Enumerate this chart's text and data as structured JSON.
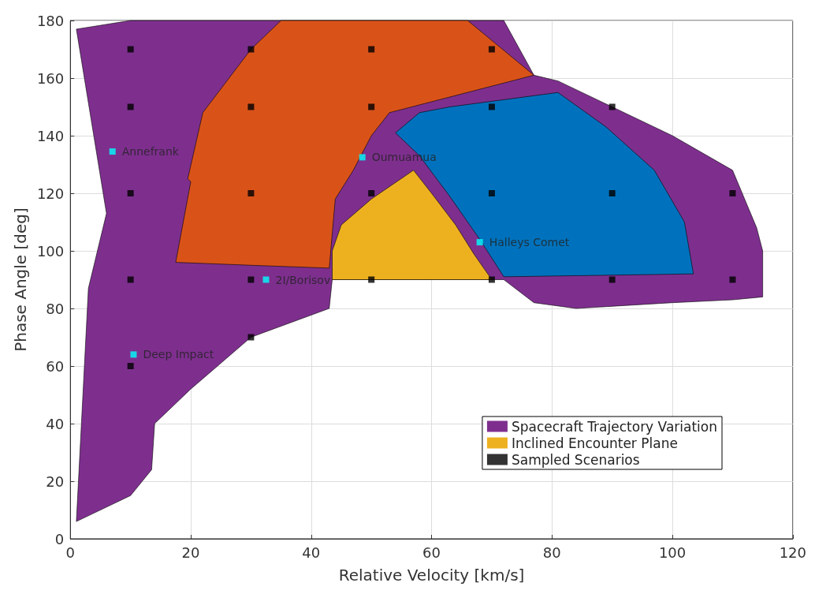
{
  "chart_data": {
    "type": "area",
    "xlabel": "Relative Velocity [km/s]",
    "ylabel": "Phase Angle [deg]",
    "xlim": [
      0,
      120
    ],
    "xticks": [
      0,
      20,
      40,
      60,
      80,
      100,
      120
    ],
    "ylim": [
      0,
      180
    ],
    "yticks": [
      0,
      20,
      40,
      60,
      80,
      100,
      120,
      140,
      160,
      180
    ],
    "grid": true,
    "legend": "bottom right",
    "series": [
      {
        "name": "Spacecraft Trajectory Variation",
        "color": "#7e2f8e",
        "x": [
          1,
          10,
          72,
          77,
          81,
          100,
          110,
          114,
          115,
          115,
          110,
          100,
          84,
          77,
          72,
          43.5,
          43,
          30,
          20,
          14,
          13.5,
          10,
          1,
          3,
          4.5,
          6
        ],
        "values": [
          177,
          180,
          180,
          161,
          159,
          140,
          128,
          108,
          100,
          84,
          83,
          82,
          80,
          82,
          90,
          90,
          80,
          70,
          52,
          40,
          24,
          15,
          6,
          87,
          100,
          113
        ]
      },
      {
        "color": "#d95319",
        "x": [
          17.5,
          20,
          19.5,
          22,
          30,
          35,
          66,
          77,
          53,
          50,
          47,
          44,
          43,
          30
        ],
        "values": [
          96,
          124,
          125,
          148,
          170,
          180,
          180,
          161,
          148,
          140,
          128,
          118,
          94,
          95
        ]
      },
      {
        "name": "Inclined Encounter Plane",
        "color": "#edb120",
        "x": [
          43.5,
          43.5,
          45,
          50,
          57,
          60,
          64,
          67,
          70
        ],
        "values": [
          90,
          100,
          109,
          118,
          128,
          120,
          109,
          99,
          90
        ]
      },
      {
        "color": "#0072bd",
        "x": [
          54,
          58,
          63,
          72,
          81,
          89,
          97,
          102,
          103.5,
          72,
          68,
          63,
          58
        ],
        "values": [
          141,
          148,
          150,
          152.5,
          155,
          143,
          128,
          110,
          92,
          91,
          104,
          119,
          133
        ]
      },
      {
        "name": "Sampled Scenarios",
        "type": "scatter",
        "color": "#000000",
        "marker": "square",
        "x": [
          10,
          30,
          50,
          70,
          10,
          30,
          50,
          70,
          90,
          10,
          30,
          50,
          70,
          90,
          110,
          10,
          30,
          50,
          70,
          90,
          110,
          30,
          10
        ],
        "values": [
          170,
          170,
          170,
          170,
          150,
          150,
          150,
          150,
          150,
          120,
          120,
          120,
          120,
          120,
          120,
          90,
          90,
          90,
          90,
          90,
          90,
          70,
          60
        ]
      },
      {
        "type": "scatter",
        "color": "#00ffff",
        "marker": "square",
        "x": [
          7,
          48.5,
          68,
          32.5,
          10.5
        ],
        "values": [
          134.5,
          132.5,
          103,
          90,
          64
        ]
      }
    ],
    "annotations": [
      {
        "text": "Annefrank",
        "x": 7,
        "y": 134.5
      },
      {
        "text": "Oumuamua",
        "x": 48.5,
        "y": 132.5
      },
      {
        "text": "Halleys Comet",
        "x": 68,
        "y": 103
      },
      {
        "text": "2I/Borisov",
        "x": 32.5,
        "y": 90
      },
      {
        "text": "Deep Impact",
        "x": 10.5,
        "y": 64
      }
    ]
  }
}
